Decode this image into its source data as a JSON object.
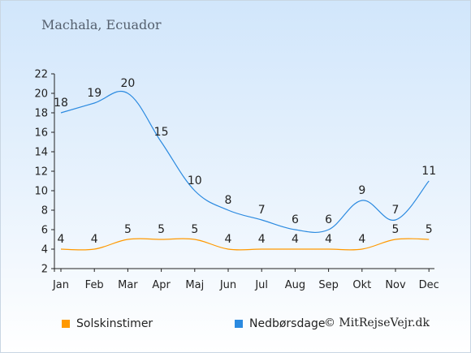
{
  "chart_data": {
    "type": "line",
    "title": "Machala, Ecuador",
    "categories": [
      "Jan",
      "Feb",
      "Mar",
      "Apr",
      "Maj",
      "Jun",
      "Jul",
      "Aug",
      "Sep",
      "Okt",
      "Nov",
      "Dec"
    ],
    "series": [
      {
        "name": "Solskinstimer",
        "color": "#ff9900",
        "values": [
          4,
          4,
          5,
          5,
          5,
          4,
          4,
          4,
          4,
          4,
          5,
          5
        ]
      },
      {
        "name": "Nedbørsdage",
        "color": "#2b8ae0",
        "values": [
          18,
          19,
          20,
          15,
          10,
          8,
          7,
          6,
          6,
          9,
          7,
          11
        ]
      }
    ],
    "ylim": [
      2,
      22
    ],
    "yticks": [
      "2",
      "4",
      "6",
      "8",
      "10",
      "12",
      "14",
      "16",
      "18",
      "20",
      "22"
    ],
    "legend_position": "bottom-left"
  },
  "copyright": "© MitRejseVejr.dk"
}
